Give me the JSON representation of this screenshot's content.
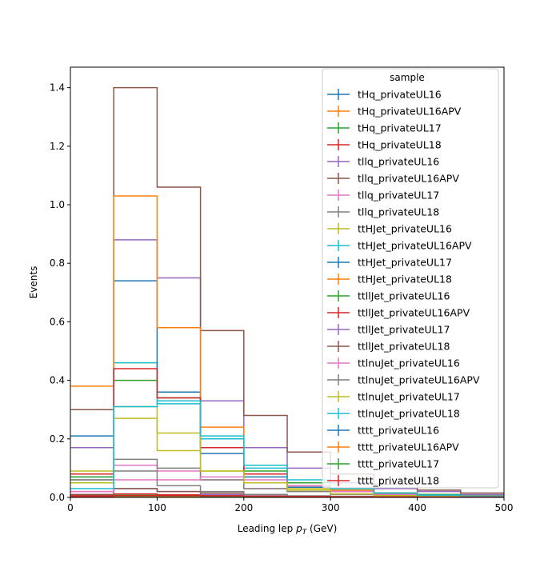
{
  "chart_data": {
    "type": "histogram-step",
    "xlabel": "Leading lep $p_T$ (GeV)",
    "xlabel_main": "Leading lep ",
    "xlabel_sym": "p",
    "xlabel_sub": "T",
    "xlabel_unit": " (GeV)",
    "ylabel": "Events",
    "xlim": [
      0,
      500
    ],
    "ylim": [
      0,
      1.47
    ],
    "xticks": [
      0,
      100,
      200,
      300,
      400,
      500
    ],
    "yticks": [
      0.0,
      0.2,
      0.4,
      0.6,
      0.8,
      1.0,
      1.2,
      1.4
    ],
    "grid": false,
    "legend_title": "sample",
    "legend_position": "top-right",
    "bin_edges": [
      0,
      50,
      100,
      150,
      200,
      250,
      300,
      350,
      400,
      450,
      500
    ],
    "series": [
      {
        "name": "tHq_privateUL16",
        "color": "#1f77b4",
        "values": [
          0.003,
          0.004,
          0.003,
          0.002,
          0.002,
          0.001,
          0.001,
          0.001,
          0.0,
          0.0
        ]
      },
      {
        "name": "tHq_privateUL16APV",
        "color": "#ff7f0e",
        "values": [
          0.003,
          0.004,
          0.003,
          0.002,
          0.002,
          0.001,
          0.001,
          0.001,
          0.0,
          0.0
        ]
      },
      {
        "name": "tHq_privateUL17",
        "color": "#2ca02c",
        "values": [
          0.005,
          0.008,
          0.006,
          0.004,
          0.003,
          0.002,
          0.001,
          0.001,
          0.001,
          0.0
        ]
      },
      {
        "name": "tHq_privateUL18",
        "color": "#d62728",
        "values": [
          0.007,
          0.012,
          0.009,
          0.006,
          0.004,
          0.003,
          0.002,
          0.001,
          0.001,
          0.001
        ]
      },
      {
        "name": "tllq_privateUL16",
        "color": "#9467bd",
        "values": [
          0.17,
          0.88,
          0.75,
          0.33,
          0.17,
          0.1,
          0.05,
          0.03,
          0.02,
          0.01
        ]
      },
      {
        "name": "tllq_privateUL16APV",
        "color": "#8c564b",
        "values": [
          0.3,
          1.4,
          1.06,
          0.57,
          0.28,
          0.155,
          0.08,
          0.045,
          0.025,
          0.015
        ]
      },
      {
        "name": "tllq_privateUL17",
        "color": "#e377c2",
        "values": [
          0.02,
          0.11,
          0.09,
          0.06,
          0.03,
          0.02,
          0.01,
          0.005,
          0.003,
          0.002
        ]
      },
      {
        "name": "tllq_privateUL18",
        "color": "#7f7f7f",
        "values": [
          0.06,
          0.13,
          0.1,
          0.06,
          0.03,
          0.02,
          0.01,
          0.005,
          0.003,
          0.002
        ]
      },
      {
        "name": "ttHJet_privateUL16",
        "color": "#bcbd22",
        "values": [
          0.09,
          0.31,
          0.16,
          0.09,
          0.05,
          0.03,
          0.02,
          0.01,
          0.005,
          0.003
        ]
      },
      {
        "name": "ttHJet_privateUL16APV",
        "color": "#17becf",
        "values": [
          0.07,
          0.46,
          0.32,
          0.2,
          0.1,
          0.05,
          0.03,
          0.015,
          0.01,
          0.005
        ]
      },
      {
        "name": "ttHJet_privateUL17",
        "color": "#1f77b4",
        "values": [
          0.21,
          0.74,
          0.36,
          0.15,
          0.07,
          0.035,
          0.02,
          0.01,
          0.005,
          0.003
        ]
      },
      {
        "name": "ttHJet_privateUL18",
        "color": "#ff7f0e",
        "values": [
          0.38,
          1.03,
          0.58,
          0.24,
          0.11,
          0.05,
          0.025,
          0.015,
          0.01,
          0.005
        ]
      },
      {
        "name": "ttllJet_privateUL16",
        "color": "#2ca02c",
        "values": [
          0.07,
          0.4,
          0.34,
          0.17,
          0.09,
          0.05,
          0.03,
          0.015,
          0.01,
          0.005
        ]
      },
      {
        "name": "ttllJet_privateUL16APV",
        "color": "#d62728",
        "values": [
          0.08,
          0.44,
          0.34,
          0.17,
          0.08,
          0.04,
          0.02,
          0.01,
          0.007,
          0.004
        ]
      },
      {
        "name": "ttllJet_privateUL17",
        "color": "#9467bd",
        "values": [
          0.01,
          0.03,
          0.02,
          0.01,
          0.005,
          0.003,
          0.002,
          0.001,
          0.001,
          0.0
        ]
      },
      {
        "name": "ttllJet_privateUL18",
        "color": "#8c564b",
        "values": [
          0.01,
          0.03,
          0.02,
          0.015,
          0.01,
          0.005,
          0.003,
          0.002,
          0.001,
          0.001
        ]
      },
      {
        "name": "ttlnuJet_privateUL16",
        "color": "#e377c2",
        "values": [
          0.02,
          0.06,
          0.06,
          0.07,
          0.06,
          0.04,
          0.02,
          0.01,
          0.005,
          0.003
        ]
      },
      {
        "name": "ttlnuJet_privateUL16APV",
        "color": "#7f7f7f",
        "values": [
          0.06,
          0.09,
          0.04,
          0.02,
          0.01,
          0.005,
          0.003,
          0.002,
          0.001,
          0.001
        ]
      },
      {
        "name": "ttlnuJet_privateUL17",
        "color": "#bcbd22",
        "values": [
          0.05,
          0.27,
          0.22,
          0.09,
          0.05,
          0.025,
          0.012,
          0.006,
          0.003,
          0.002
        ]
      },
      {
        "name": "ttlnuJet_privateUL18",
        "color": "#17becf",
        "values": [
          0.03,
          0.31,
          0.33,
          0.21,
          0.11,
          0.06,
          0.03,
          0.015,
          0.008,
          0.004
        ]
      },
      {
        "name": "tttt_privateUL16",
        "color": "#1f77b4",
        "values": [
          0.002,
          0.004,
          0.004,
          0.003,
          0.003,
          0.002,
          0.002,
          0.001,
          0.001,
          0.001
        ]
      },
      {
        "name": "tttt_privateUL16APV",
        "color": "#ff7f0e",
        "values": [
          0.002,
          0.004,
          0.004,
          0.004,
          0.003,
          0.002,
          0.002,
          0.001,
          0.001,
          0.001
        ]
      },
      {
        "name": "tttt_privateUL17",
        "color": "#2ca02c",
        "values": [
          0.002,
          0.005,
          0.005,
          0.004,
          0.003,
          0.003,
          0.002,
          0.001,
          0.001,
          0.001
        ]
      },
      {
        "name": "tttt_privateUL18",
        "color": "#d62728",
        "values": [
          0.003,
          0.006,
          0.006,
          0.005,
          0.004,
          0.003,
          0.002,
          0.002,
          0.001,
          0.001
        ]
      }
    ]
  }
}
